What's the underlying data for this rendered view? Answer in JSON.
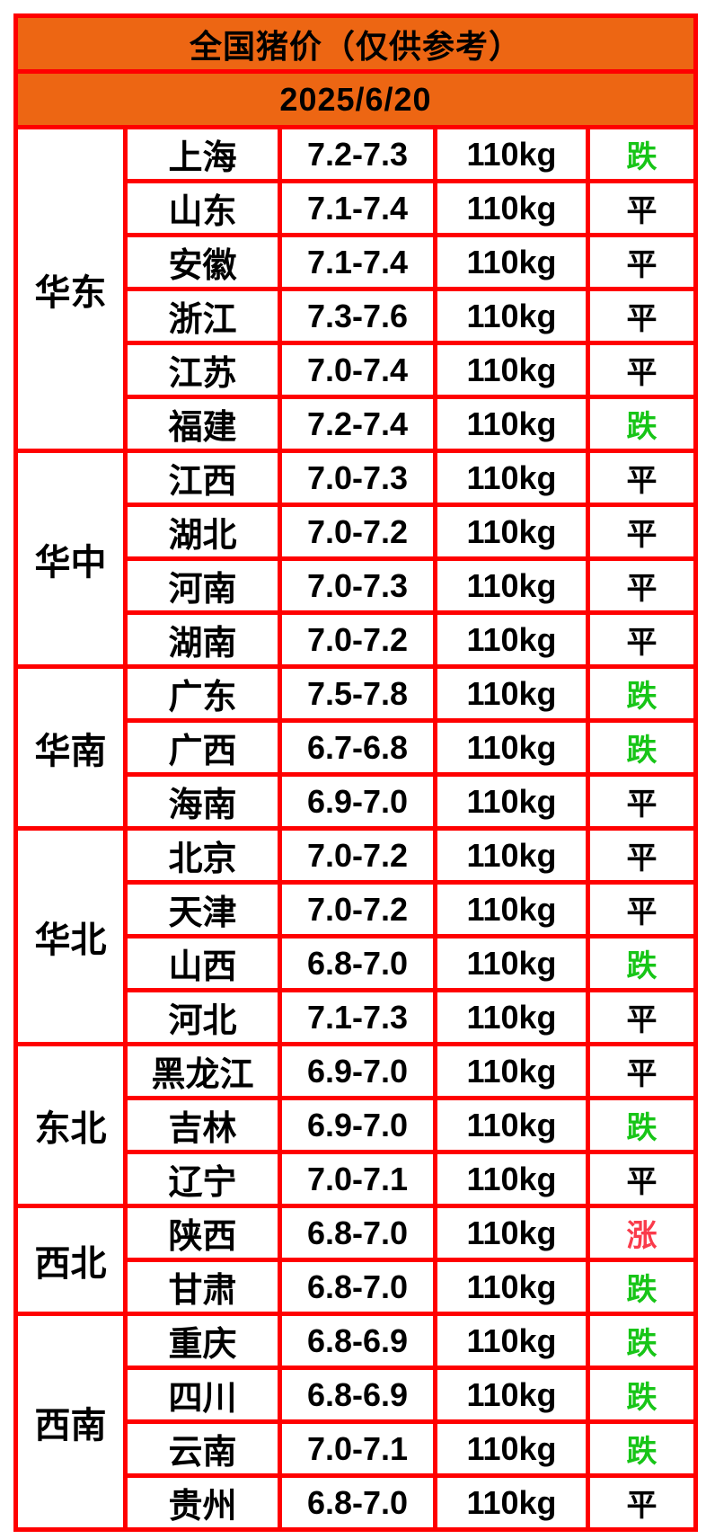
{
  "page": {
    "background": "#ffffff"
  },
  "header": {
    "title": "全国猪价（仅供参考）",
    "date": "2025/6/20",
    "accent_color": "#ED6613"
  },
  "table": {
    "border_color": "#FF0000",
    "trend_colors": {
      "down": "#17C517",
      "flat": "#000000",
      "up": "#FA3B4B"
    },
    "regions": [
      {
        "name": "华东",
        "rows": [
          {
            "province": "上海",
            "price": "7.2-7.3",
            "weight": "110kg",
            "trend": "跌",
            "trend_type": "down"
          },
          {
            "province": "山东",
            "price": "7.1-7.4",
            "weight": "110kg",
            "trend": "平",
            "trend_type": "flat"
          },
          {
            "province": "安徽",
            "price": "7.1-7.4",
            "weight": "110kg",
            "trend": "平",
            "trend_type": "flat"
          },
          {
            "province": "浙江",
            "price": "7.3-7.6",
            "weight": "110kg",
            "trend": "平",
            "trend_type": "flat"
          },
          {
            "province": "江苏",
            "price": "7.0-7.4",
            "weight": "110kg",
            "trend": "平",
            "trend_type": "flat"
          },
          {
            "province": "福建",
            "price": "7.2-7.4",
            "weight": "110kg",
            "trend": "跌",
            "trend_type": "down"
          }
        ]
      },
      {
        "name": "华中",
        "rows": [
          {
            "province": "江西",
            "price": "7.0-7.3",
            "weight": "110kg",
            "trend": "平",
            "trend_type": "flat"
          },
          {
            "province": "湖北",
            "price": "7.0-7.2",
            "weight": "110kg",
            "trend": "平",
            "trend_type": "flat"
          },
          {
            "province": "河南",
            "price": "7.0-7.3",
            "weight": "110kg",
            "trend": "平",
            "trend_type": "flat"
          },
          {
            "province": "湖南",
            "price": "7.0-7.2",
            "weight": "110kg",
            "trend": "平",
            "trend_type": "flat"
          }
        ]
      },
      {
        "name": "华南",
        "rows": [
          {
            "province": "广东",
            "price": "7.5-7.8",
            "weight": "110kg",
            "trend": "跌",
            "trend_type": "down"
          },
          {
            "province": "广西",
            "price": "6.7-6.8",
            "weight": "110kg",
            "trend": "跌",
            "trend_type": "down"
          },
          {
            "province": "海南",
            "price": "6.9-7.0",
            "weight": "110kg",
            "trend": "平",
            "trend_type": "flat"
          }
        ]
      },
      {
        "name": "华北",
        "rows": [
          {
            "province": "北京",
            "price": "7.0-7.2",
            "weight": "110kg",
            "trend": "平",
            "trend_type": "flat"
          },
          {
            "province": "天津",
            "price": "7.0-7.2",
            "weight": "110kg",
            "trend": "平",
            "trend_type": "flat"
          },
          {
            "province": "山西",
            "price": "6.8-7.0",
            "weight": "110kg",
            "trend": "跌",
            "trend_type": "down"
          },
          {
            "province": "河北",
            "price": "7.1-7.3",
            "weight": "110kg",
            "trend": "平",
            "trend_type": "flat"
          }
        ]
      },
      {
        "name": "东北",
        "rows": [
          {
            "province": "黑龙江",
            "price": "6.9-7.0",
            "weight": "110kg",
            "trend": "平",
            "trend_type": "flat"
          },
          {
            "province": "吉林",
            "price": "6.9-7.0",
            "weight": "110kg",
            "trend": "跌",
            "trend_type": "down"
          },
          {
            "province": "辽宁",
            "price": "7.0-7.1",
            "weight": "110kg",
            "trend": "平",
            "trend_type": "flat"
          }
        ]
      },
      {
        "name": "西北",
        "rows": [
          {
            "province": "陕西",
            "price": "6.8-7.0",
            "weight": "110kg",
            "trend": "涨",
            "trend_type": "up"
          },
          {
            "province": "甘肃",
            "price": "6.8-7.0",
            "weight": "110kg",
            "trend": "跌",
            "trend_type": "down"
          }
        ]
      },
      {
        "name": "西南",
        "rows": [
          {
            "province": "重庆",
            "price": "6.8-6.9",
            "weight": "110kg",
            "trend": "跌",
            "trend_type": "down"
          },
          {
            "province": "四川",
            "price": "6.8-6.9",
            "weight": "110kg",
            "trend": "跌",
            "trend_type": "down"
          },
          {
            "province": "云南",
            "price": "7.0-7.1",
            "weight": "110kg",
            "trend": "跌",
            "trend_type": "down"
          },
          {
            "province": "贵州",
            "price": "6.8-7.0",
            "weight": "110kg",
            "trend": "平",
            "trend_type": "flat"
          }
        ]
      }
    ]
  }
}
